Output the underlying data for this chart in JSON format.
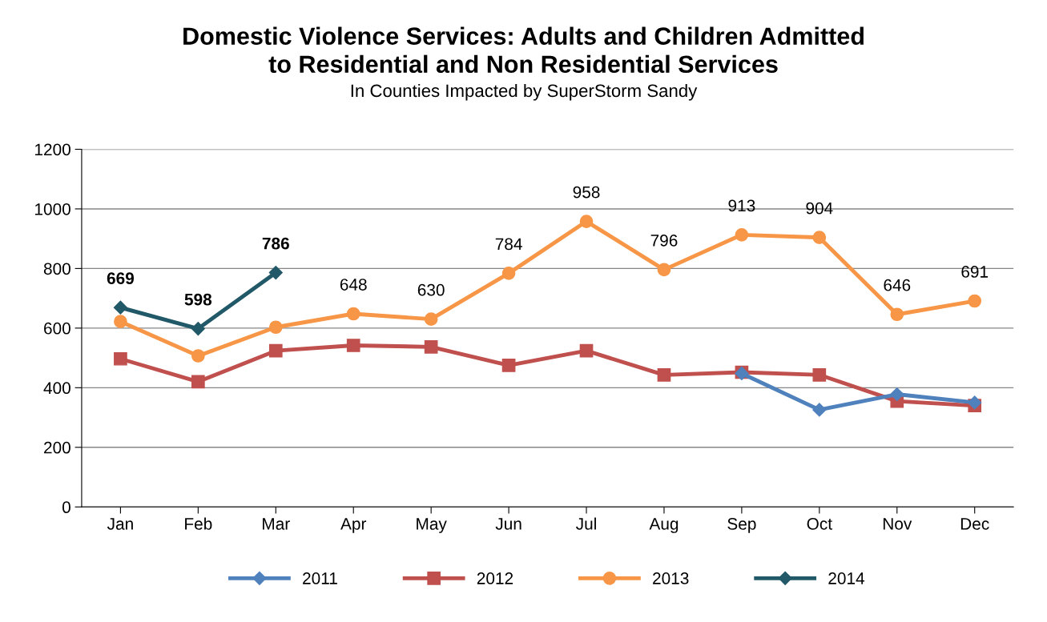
{
  "chart_data": {
    "type": "line",
    "title": "Domestic Violence Services: Adults and Children Admitted\nto Residential and Non Residential Services",
    "subtitle": "In Counties Impacted by SuperStorm Sandy",
    "categories": [
      "Jan",
      "Feb",
      "Mar",
      "Apr",
      "May",
      "Jun",
      "Jul",
      "Aug",
      "Sep",
      "Oct",
      "Nov",
      "Dec"
    ],
    "series": [
      {
        "name": "2011",
        "color": "#4f81bd",
        "marker": "diamond",
        "values": [
          null,
          null,
          null,
          null,
          null,
          null,
          null,
          null,
          448,
          326,
          378,
          350
        ]
      },
      {
        "name": "2012",
        "color": "#c0504d",
        "marker": "square",
        "values": [
          497,
          420,
          524,
          542,
          537,
          475,
          524,
          443,
          452,
          443,
          355,
          340
        ]
      },
      {
        "name": "2013",
        "color": "#f79646",
        "marker": "circle",
        "values": [
          622,
          507,
          603,
          648,
          630,
          784,
          958,
          796,
          913,
          904,
          646,
          691
        ],
        "value_labels": [
          null,
          null,
          null,
          "648",
          "630",
          "784",
          "958",
          "796",
          "913",
          "904",
          "646",
          "691"
        ]
      },
      {
        "name": "2014",
        "color": "#215968",
        "marker": "diamond",
        "values": [
          669,
          598,
          786,
          null,
          null,
          null,
          null,
          null,
          null,
          null,
          null,
          null
        ],
        "value_labels": [
          "669",
          "598",
          "786",
          null,
          null,
          null,
          null,
          null,
          null,
          null,
          null,
          null
        ]
      }
    ],
    "ylim": [
      0,
      1200
    ],
    "yticks": [
      0,
      200,
      400,
      600,
      800,
      1000,
      1200
    ],
    "grid": "y",
    "legend": "bottom",
    "line_style": "solid"
  }
}
